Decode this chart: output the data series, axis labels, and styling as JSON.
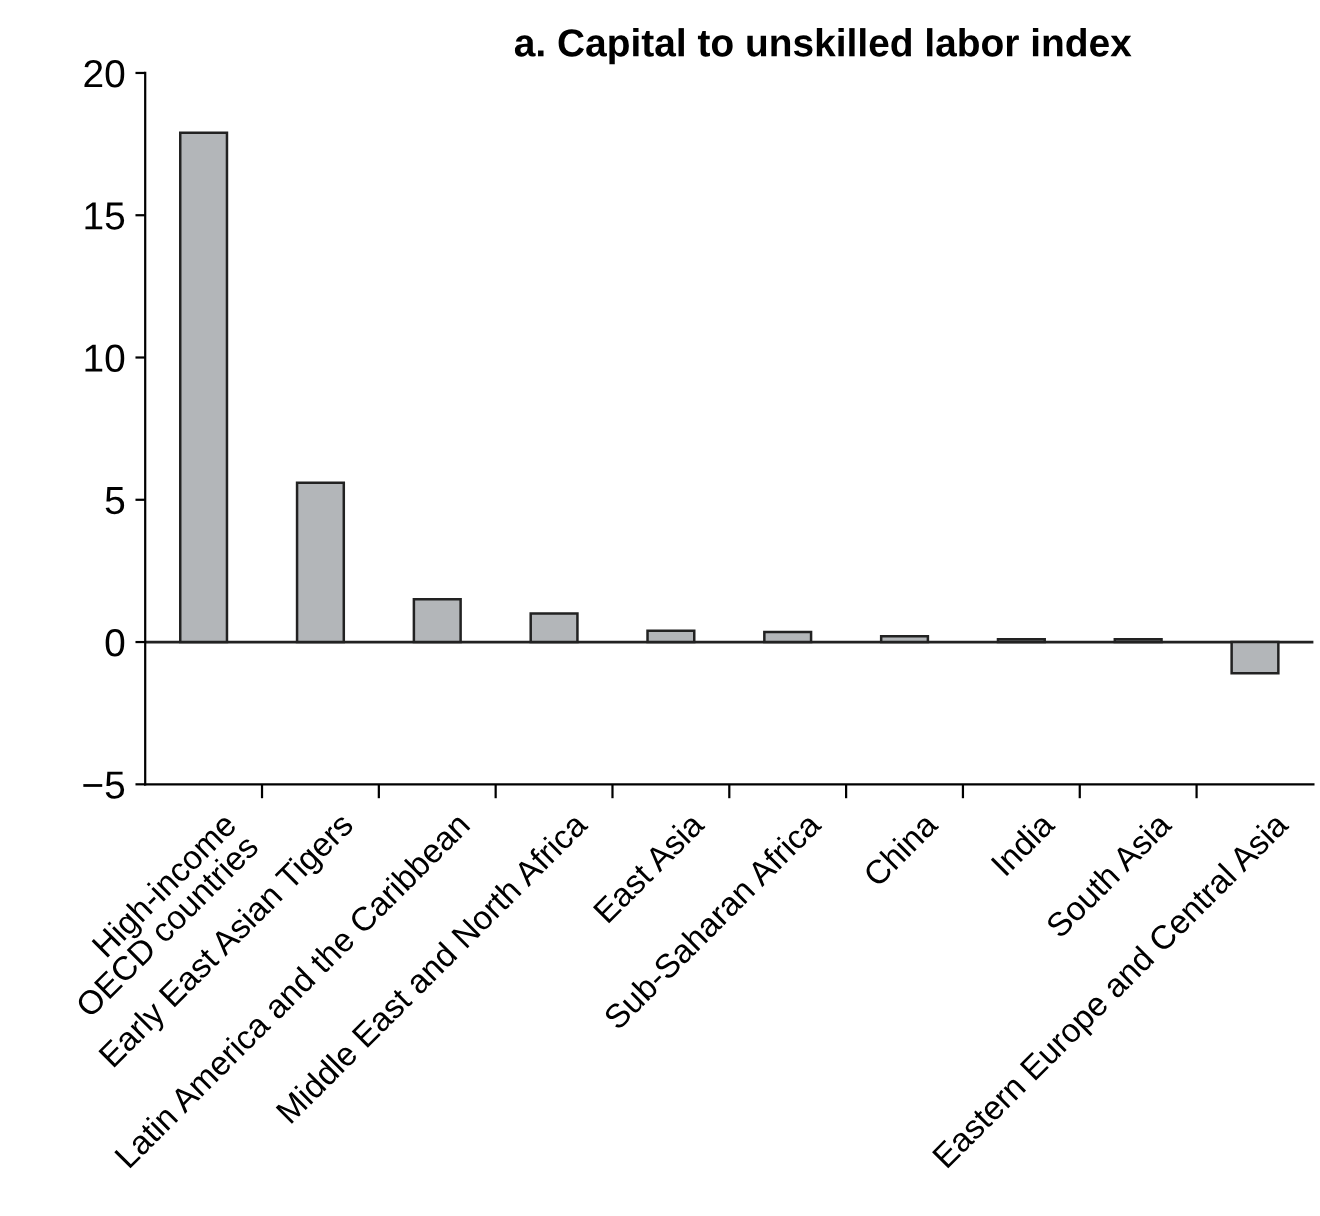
{
  "chart_data": {
    "type": "bar",
    "title": "a. Capital to unskilled labor index",
    "categories": [
      "High-income\nOECD countries",
      "Early East Asian Tigers",
      "Latin America and the Caribbean",
      "Middle East and North Africa",
      "East Asia",
      "Sub-Saharan Africa",
      "China",
      "India",
      "South Asia",
      "Eastern Europe and Central Asia"
    ],
    "values": [
      17.9,
      5.6,
      1.5,
      1.0,
      0.4,
      0.35,
      0.2,
      0.1,
      0.1,
      -1.1
    ],
    "color": "#b3b6b9",
    "ylim": [
      -5,
      20
    ],
    "yticks": [
      {
        "value": -5,
        "label": "−5"
      },
      0,
      5,
      10,
      15,
      20
    ],
    "ref_lines": [
      {
        "axis": "y",
        "value": 0,
        "label": null
      }
    ],
    "grid": false,
    "legend": false
  }
}
